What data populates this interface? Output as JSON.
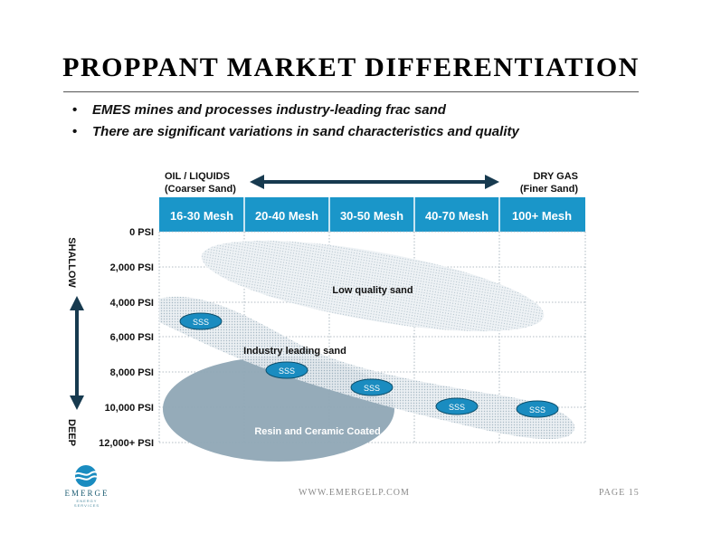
{
  "title": "PROPPANT MARKET DIFFERENTIATION",
  "bullets": [
    "EMES mines and processes industry-leading frac sand",
    "There are significant variations in sand characteristics and quality"
  ],
  "diagram": {
    "left_label": [
      "OIL / LIQUIDS",
      "(Coarser Sand)"
    ],
    "right_label": [
      "DRY GAS",
      "(Finer Sand)"
    ],
    "mesh_columns": [
      "16-30 Mesh",
      "20-40 Mesh",
      "30-50 Mesh",
      "40-70 Mesh",
      "100+ Mesh"
    ],
    "psi_rows": [
      "0 PSI",
      "2,000 PSI",
      "4,000 PSI",
      "6,000 PSI",
      "8,000 PSI",
      "10,000 PSI",
      "12,000+ PSI"
    ],
    "shallow_label": "SHALLOW",
    "deep_label": "DEEP",
    "regions": {
      "low_quality": "Low quality sand",
      "industry_leading": "Industry leading sand",
      "resin_ceramic": "Resin and Ceramic Coated"
    },
    "marker_label": "SSS",
    "colors": {
      "header_blue": "#1a96c9",
      "arrow_navy": "#173a4f",
      "resin_gray": "#8fa7b5",
      "low_quality_gray": "#dbe3e9",
      "sss_blue": "#1a8cc0"
    }
  },
  "footer": {
    "url": "WWW.EMERGELP.COM",
    "page": "PAGE 15",
    "logo_text": "EMERGE",
    "logo_subtext": "ENERGY SERVICES"
  }
}
